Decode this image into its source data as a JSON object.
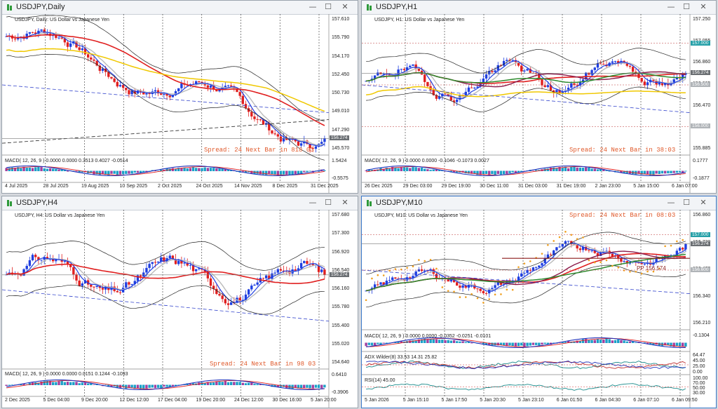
{
  "windows": [
    {
      "id": "w1",
      "title": "USDJPY,Daily",
      "active": false,
      "chart_title": "USDJPY, Daily:  US Dollar vs Japanese Yen",
      "price_ticks": [
        "157.610",
        "155.790",
        "154.170",
        "152.450",
        "150.730",
        "149.010",
        "147.290",
        "145.570"
      ],
      "price_tag": "156.274",
      "macd_label": "MACD( 12, 26, 9 ) 0.0000 0.0000 0.3513 0.4027 -0.0514",
      "macd_ticks": [
        "1.5424",
        "-0.5575"
      ],
      "spread_text": "Spread: 24  Next Bar in 818 03",
      "time_ticks": [
        "4 Jul 2025",
        "28 Jul 2025",
        "19 Aug 2025",
        "10 Sep 2025",
        "2 Oct 2025",
        "24 Oct 2025",
        "14 Nov 2025",
        "8 Dec 2025",
        "31 Dec 2025"
      ]
    },
    {
      "id": "w2",
      "title": "USDJPY,H1",
      "active": false,
      "chart_title": "USDJPY, H1:  US Dollar vs Japanese Yen",
      "price_ticks": [
        "157.250",
        "157.055",
        "156.860",
        "156.665",
        "156.470",
        "156.080",
        "155.885"
      ],
      "price_tag": "156.274",
      "level_tags": [
        "157.000",
        "156.500",
        "156.000"
      ],
      "macd_label": "MACD( 12, 26, 9 ) 0.0000 0.0000 -0.1046 -0.1073 0.0027",
      "macd_ticks": [
        "0.1777",
        "-0.1877"
      ],
      "spread_text": "Spread: 24  Next Bar in 38:03",
      "time_ticks": [
        "26 Dec 2025",
        "29 Dec 03:00",
        "29 Dec 19:00",
        "30 Dec 11:00",
        "31 Dec 03:00",
        "31 Dec 19:00",
        "2 Jan 23:00",
        "5 Jan 15:00",
        "6 Jan 07:00"
      ]
    },
    {
      "id": "w3",
      "title": "USDJPY,H4",
      "active": false,
      "chart_title": "USDJPY, H4:  US Dollar vs Japanese Yen",
      "price_ticks": [
        "157.680",
        "157.300",
        "156.920",
        "156.540",
        "156.160",
        "155.780",
        "155.400",
        "155.020",
        "154.640"
      ],
      "price_tag": "156.274",
      "macd_label": "MACD( 12, 26, 9 ) 0.0000 0.0000 0.0151 0.1244 -0.1093",
      "macd_ticks": [
        "0.6410",
        "-0.3906"
      ],
      "spread_text": "Spread: 24  Next Bar in 98 03",
      "time_ticks": [
        "2 Dec 2025",
        "5 Dec 04:00",
        "9 Dec 20:00",
        "12 Dec 12:00",
        "17 Dec 04:00",
        "19 Dec 20:00",
        "24 Dec 12:00",
        "30 Dec 16:00",
        "5 Jan 20:00"
      ]
    },
    {
      "id": "w4",
      "title": "USDJPY,M10",
      "active": true,
      "chart_title": "USDJPY, M10:  US Dollar vs Japanese Yen",
      "price_ticks": [
        "156.860",
        "156.730",
        "156.470",
        "156.340",
        "156.210"
      ],
      "price_tag": "156.274",
      "level_tags": [
        "157.000",
        "156.600"
      ],
      "pp_label": "PP 156.574",
      "macd_label": "MACD( 12, 26, 9 ) 0.0000 0.0000 -0.0352 -0.0251 -0.0101",
      "macd_ticks": [
        "-0.1304"
      ],
      "adx_label": "ADX Wilder(8) 33.53 14.31 25.82",
      "adx_ticks": [
        "64.47",
        "45.00",
        "25.00",
        "0.00"
      ],
      "rsi_label": "RSI(14) 45.00",
      "rsi_ticks": [
        "100.00",
        "70.00",
        "50.00",
        "30.00"
      ],
      "spread_text": "Spread: 24  Next Bar in 08:03",
      "time_ticks": [
        "5 Jan 2026",
        "5 Jan 15:10",
        "5 Jan 17:50",
        "5 Jan 20:30",
        "5 Jan 23:10",
        "6 Jan 01:50",
        "6 Jan 04:30",
        "6 Jan 07:10",
        "6 Jan 09:50"
      ]
    }
  ],
  "colors": {
    "bull": "#1f3fe0",
    "bear": "#e01f1f",
    "macd_hist": "#1aa0c8",
    "ma_red": "#e01f1f",
    "ma_yellow": "#f0c800",
    "ma_green": "#2e8b2e",
    "ma_maroon": "#8b1a4a",
    "band": "#222222",
    "grid": "#333333",
    "dashblue": "#3344cc",
    "dash_black": "#222222",
    "psar": "#f0a020",
    "tag_dark": "#6b6f73",
    "tag_cyan": "#26a0a8"
  }
}
